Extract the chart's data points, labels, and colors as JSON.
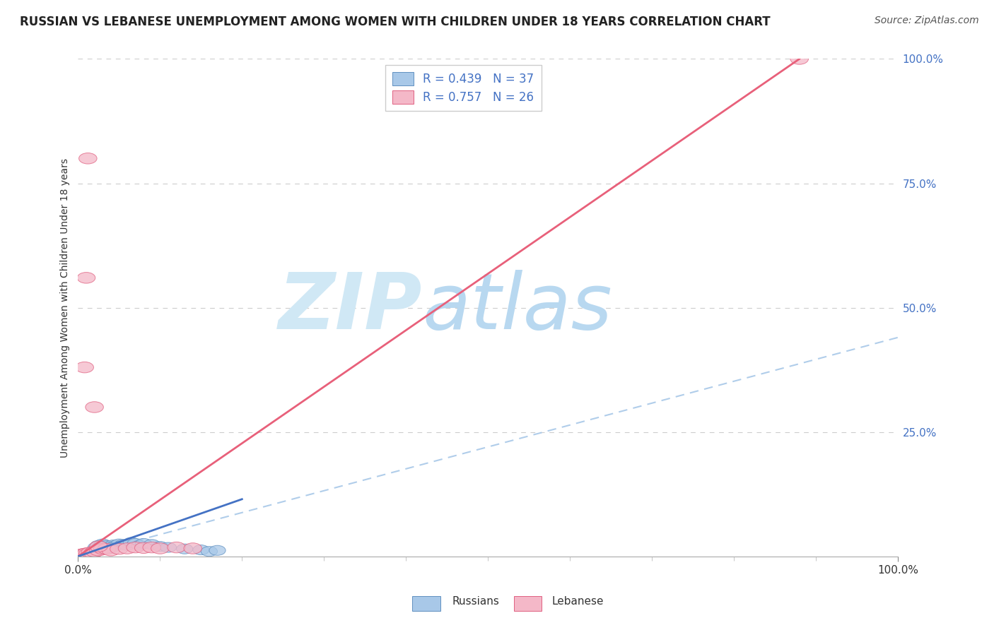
{
  "title": "RUSSIAN VS LEBANESE UNEMPLOYMENT AMONG WOMEN WITH CHILDREN UNDER 18 YEARS CORRELATION CHART",
  "source": "Source: ZipAtlas.com",
  "ylabel": "Unemployment Among Women with Children Under 18 years",
  "watermark": "ZIPatlas",
  "russian_color": "#a8c8e8",
  "russian_edge_color": "#6090c0",
  "lebanese_color": "#f4b8c8",
  "lebanese_edge_color": "#e06080",
  "trend_russian_color": "#4472c4",
  "trend_lebanese_color": "#e8607a",
  "dash_color": "#a8c8e8",
  "legend_text_color": "#4472c4",
  "ytick_color": "#4472c4",
  "grid_color": "#cccccc",
  "background_color": "#ffffff",
  "watermark_color": "#d0e8f5",
  "title_color": "#222222",
  "source_color": "#555555",
  "ylabel_color": "#333333",
  "xlim": [
    0.0,
    1.0
  ],
  "ylim": [
    0.0,
    1.0
  ],
  "russian_line": [
    [
      0.0,
      0.0
    ],
    [
      0.2,
      0.115
    ]
  ],
  "lebanese_line": [
    [
      0.0,
      0.0
    ],
    [
      0.88,
      1.0
    ]
  ],
  "dash_line": [
    [
      0.0,
      0.0
    ],
    [
      1.0,
      0.44
    ]
  ],
  "russian_points": [
    [
      0.003,
      0.002
    ],
    [
      0.005,
      0.003
    ],
    [
      0.007,
      0.004
    ],
    [
      0.009,
      0.003
    ],
    [
      0.01,
      0.005
    ],
    [
      0.012,
      0.004
    ],
    [
      0.013,
      0.006
    ],
    [
      0.015,
      0.007
    ],
    [
      0.016,
      0.005
    ],
    [
      0.018,
      0.008
    ],
    [
      0.02,
      0.012
    ],
    [
      0.022,
      0.018
    ],
    [
      0.025,
      0.022
    ],
    [
      0.028,
      0.02
    ],
    [
      0.03,
      0.025
    ],
    [
      0.032,
      0.02
    ],
    [
      0.035,
      0.022
    ],
    [
      0.038,
      0.018
    ],
    [
      0.04,
      0.02
    ],
    [
      0.043,
      0.023
    ],
    [
      0.045,
      0.021
    ],
    [
      0.05,
      0.025
    ],
    [
      0.055,
      0.024
    ],
    [
      0.06,
      0.022
    ],
    [
      0.065,
      0.028
    ],
    [
      0.07,
      0.026
    ],
    [
      0.075,
      0.022
    ],
    [
      0.08,
      0.026
    ],
    [
      0.09,
      0.024
    ],
    [
      0.1,
      0.02
    ],
    [
      0.11,
      0.018
    ],
    [
      0.13,
      0.015
    ],
    [
      0.15,
      0.013
    ],
    [
      0.16,
      0.01
    ],
    [
      0.17,
      0.012
    ],
    [
      0.02,
      0.01
    ],
    [
      0.04,
      0.017
    ]
  ],
  "lebanese_points": [
    [
      0.003,
      0.003
    ],
    [
      0.005,
      0.004
    ],
    [
      0.007,
      0.005
    ],
    [
      0.01,
      0.006
    ],
    [
      0.012,
      0.005
    ],
    [
      0.015,
      0.008
    ],
    [
      0.018,
      0.007
    ],
    [
      0.02,
      0.01
    ],
    [
      0.025,
      0.012
    ],
    [
      0.03,
      0.015
    ],
    [
      0.035,
      0.015
    ],
    [
      0.04,
      0.012
    ],
    [
      0.05,
      0.015
    ],
    [
      0.06,
      0.016
    ],
    [
      0.07,
      0.018
    ],
    [
      0.08,
      0.017
    ],
    [
      0.09,
      0.018
    ],
    [
      0.1,
      0.016
    ],
    [
      0.12,
      0.018
    ],
    [
      0.14,
      0.016
    ],
    [
      0.01,
      0.56
    ],
    [
      0.012,
      0.8
    ],
    [
      0.008,
      0.38
    ],
    [
      0.02,
      0.3
    ],
    [
      0.88,
      1.0
    ],
    [
      0.025,
      0.02
    ]
  ],
  "yticks": [
    0.0,
    0.25,
    0.5,
    0.75,
    1.0
  ],
  "ytick_labels": [
    "",
    "25.0%",
    "50.0%",
    "75.0%",
    "100.0%"
  ],
  "xticks_major": [
    0.0,
    1.0
  ],
  "xtick_labels": [
    "0.0%",
    "100.0%"
  ],
  "xticks_minor": [
    0.1,
    0.2,
    0.3,
    0.4,
    0.5,
    0.6,
    0.7,
    0.8,
    0.9
  ],
  "title_fontsize": 12,
  "source_fontsize": 10,
  "ylabel_fontsize": 10,
  "tick_fontsize": 11,
  "legend_fontsize": 12,
  "watermark_fontsize": 80
}
